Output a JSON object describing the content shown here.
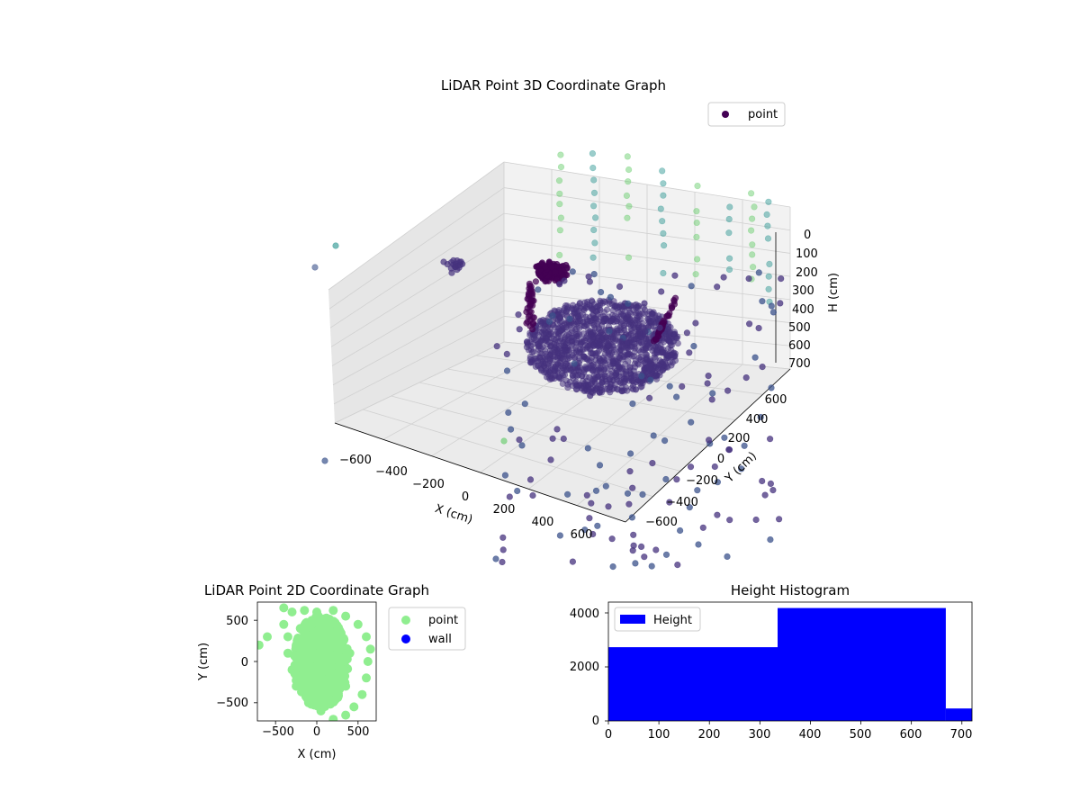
{
  "colors": {
    "point_dark": "#440154",
    "point_main": "#46327e",
    "point_mid": "#3b528b",
    "point_teal": "#21918c",
    "point_light": "#5ec962",
    "light_green": "#90ee90",
    "wall_blue": "#0000ff",
    "hist_blue": "#0000ff"
  },
  "chart_data": [
    {
      "type": "scatter",
      "projection": "3d",
      "title": "LiDAR Point 3D Coordinate Graph",
      "xlabel": "X (cm)",
      "ylabel": "Y (cm)",
      "zlabel": "H (cm)",
      "xlim": [
        -700,
        700
      ],
      "ylim": [
        -700,
        700
      ],
      "zlim": [
        0,
        700
      ],
      "xticks": [
        "−600",
        "−400",
        "−200",
        "0",
        "200",
        "400",
        "600"
      ],
      "yticks": [
        "−600",
        "−400",
        "−200",
        "0",
        "200",
        "400",
        "600"
      ],
      "zticks": [
        "0",
        "100",
        "200",
        "300",
        "400",
        "500",
        "600",
        "700"
      ],
      "legend": {
        "entries": [
          "point"
        ],
        "placement": "top-right"
      },
      "grid": true,
      "colormap": "viridis",
      "series": [
        {
          "name": "point",
          "clusters": [
            {
              "description_center": [
                0,
                0
              ],
              "x_range": [
                -300,
                300
              ],
              "y_range": [
                -300,
                300
              ],
              "h_range": [
                250,
                400
              ]
            },
            {
              "description_center": [
                -350,
                350
              ],
              "x_range": [
                -450,
                -300
              ],
              "y_range": [
                300,
                450
              ],
              "h_range": [
                0,
                150
              ]
            }
          ],
          "sample_points": [
            {
              "x": -650,
              "y": 600,
              "h": 350
            },
            {
              "x": 600,
              "y": -600,
              "h": 200
            },
            {
              "x": 450,
              "y": 500,
              "h": 600
            },
            {
              "x": -200,
              "y": 650,
              "h": 300
            },
            {
              "x": 650,
              "y": 200,
              "h": 250
            },
            {
              "x": 300,
              "y": -650,
              "h": 150
            },
            {
              "x": -600,
              "y": -550,
              "h": 400
            }
          ]
        }
      ]
    },
    {
      "type": "scatter",
      "title": "LiDAR Point 2D Coordinate Graph",
      "xlabel": "X (cm)",
      "ylabel": "Y (cm)",
      "xlim": [
        -720,
        720
      ],
      "ylim": [
        -720,
        720
      ],
      "xticks": [
        "−500",
        "0",
        "500"
      ],
      "yticks": [
        "−500",
        "0",
        "500"
      ],
      "legend": {
        "entries": [
          "point",
          "wall"
        ],
        "placement": "right-outside"
      },
      "grid": false,
      "series": [
        {
          "name": "point",
          "points": [
            [
              -400,
              650
            ],
            [
              -300,
              600
            ],
            [
              -150,
              620
            ],
            [
              0,
              600
            ],
            [
              200,
              620
            ],
            [
              350,
              550
            ],
            [
              500,
              450
            ],
            [
              600,
              300
            ],
            [
              650,
              150
            ],
            [
              620,
              0
            ],
            [
              600,
              -200
            ],
            [
              550,
              -400
            ],
            [
              450,
              -550
            ],
            [
              350,
              -650
            ],
            [
              200,
              -700
            ],
            [
              50,
              -600
            ],
            [
              -100,
              -500
            ],
            [
              -250,
              -300
            ],
            [
              -300,
              -100
            ],
            [
              -350,
              100
            ],
            [
              -350,
              300
            ],
            [
              -400,
              450
            ],
            [
              -600,
              300
            ],
            [
              -700,
              200
            ],
            [
              0,
              0
            ],
            [
              100,
              100
            ],
            [
              -100,
              200
            ],
            [
              200,
              -200
            ],
            [
              0,
              -300
            ],
            [
              300,
              200
            ],
            [
              -200,
              400
            ],
            [
              100,
              400
            ],
            [
              250,
              -50
            ],
            [
              -50,
              -150
            ],
            [
              400,
              100
            ],
            [
              150,
              -400
            ],
            [
              -150,
              0
            ],
            [
              350,
              -300
            ],
            [
              50,
              250
            ],
            [
              -250,
              200
            ]
          ]
        },
        {
          "name": "wall",
          "points": []
        }
      ]
    },
    {
      "type": "bar",
      "title": "Height Histogram",
      "xlabel": "",
      "ylabel": "",
      "xlim": [
        0,
        720
      ],
      "ylim": [
        0,
        4400
      ],
      "xticks": [
        "0",
        "100",
        "200",
        "300",
        "400",
        "500",
        "600",
        "700"
      ],
      "yticks": [
        "0",
        "2000",
        "4000"
      ],
      "legend": {
        "entries": [
          "Height"
        ],
        "placement": "upper-left"
      },
      "series": [
        {
          "name": "Height",
          "bins": [
            {
              "from": 0,
              "to": 335,
              "count": 2730
            },
            {
              "from": 335,
              "to": 668,
              "count": 4180
            },
            {
              "from": 668,
              "to": 720,
              "count": 460
            }
          ]
        }
      ]
    }
  ]
}
